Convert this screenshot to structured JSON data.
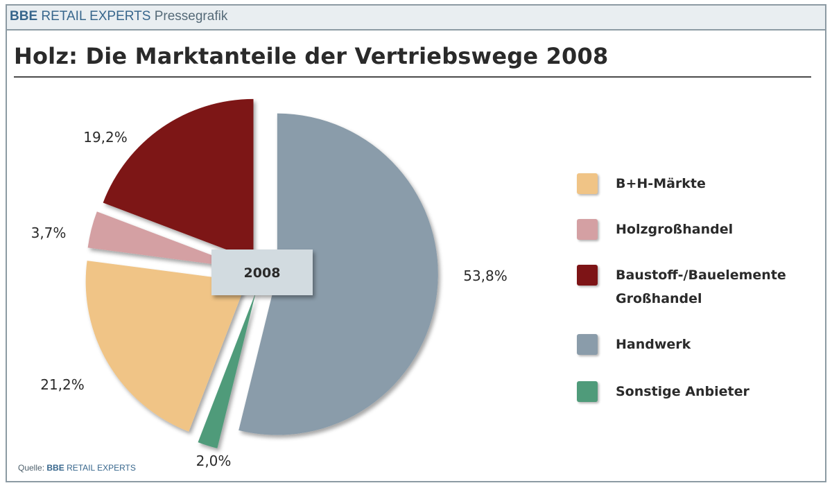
{
  "header": {
    "brand_bold": "BBE",
    "brand_rest": "RETAIL EXPERTS",
    "suffix": "Pressegrafik"
  },
  "title": "Holz: Die Marktanteile der Vertriebswege 2008",
  "center_label": "2008",
  "source": {
    "prefix": "Quelle:",
    "brand_bold": "BBE",
    "brand_rest": "RETAIL EXPERTS"
  },
  "legend": [
    {
      "label": "B+H-Märkte",
      "color": "#f0c486"
    },
    {
      "label": "Holzgroßhandel",
      "color": "#d4a0a3"
    },
    {
      "label": "Baustoff-/Bauelemente\nGroßhandel",
      "color": "#7d1416"
    },
    {
      "label": "Handwerk",
      "color": "#8a9caa"
    },
    {
      "label": "Sonstige Anbieter",
      "color": "#4f9b7a"
    }
  ],
  "chart_data": {
    "type": "pie",
    "title": "Holz: Die Marktanteile der Vertriebswege 2008",
    "slices": [
      {
        "name": "Handwerk",
        "value": 53.8,
        "label": "53,8%",
        "color": "#8a9caa"
      },
      {
        "name": "Sonstige Anbieter",
        "value": 2.0,
        "label": "2,0%",
        "color": "#4f9b7a"
      },
      {
        "name": "B+H-Märkte",
        "value": 21.2,
        "label": "21,2%",
        "color": "#f0c486"
      },
      {
        "name": "Holzgroßhandel",
        "value": 3.7,
        "label": "3,7%",
        "color": "#d4a0a3"
      },
      {
        "name": "Baustoff-/Bauelemente Großhandel",
        "value": 19.2,
        "label": "19,2%",
        "color": "#7d1416"
      }
    ],
    "legend_position": "right"
  }
}
